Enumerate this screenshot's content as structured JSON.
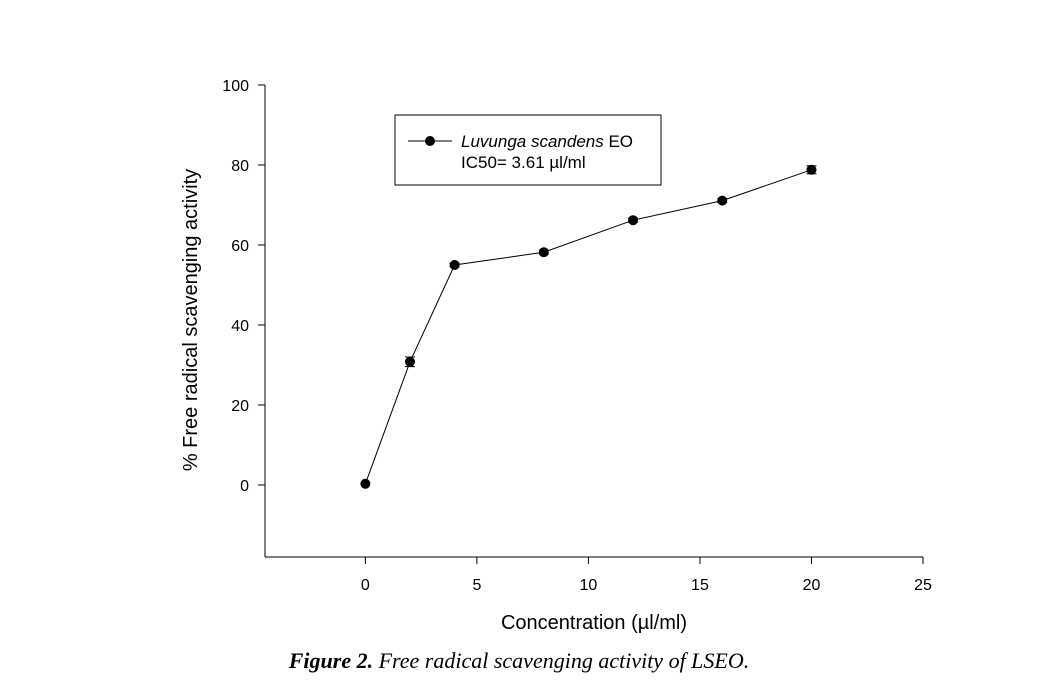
{
  "chart_data": {
    "type": "line",
    "title": "",
    "xlabel": "Concentration (µl/ml)",
    "ylabel": "% Free radical scavenging activity",
    "xlim": [
      -4.5,
      25
    ],
    "ylim": [
      -18,
      100
    ],
    "xticks": [
      0,
      5,
      10,
      15,
      20,
      25
    ],
    "yticks": [
      0,
      20,
      40,
      60,
      80,
      100
    ],
    "grid": false,
    "legend_position": "top-left",
    "series": [
      {
        "name_italic": "Luvunga scandens",
        "name_rest": " EO",
        "annotation": "IC50= 3.61 µl/ml",
        "x": [
          0,
          2,
          4,
          8,
          12,
          16,
          20
        ],
        "y": [
          0.3,
          30.8,
          55.0,
          58.2,
          66.2,
          71.1,
          78.8
        ],
        "error": [
          0,
          1.2,
          0.5,
          0.5,
          0.5,
          0.5,
          1.0
        ]
      }
    ]
  },
  "caption": {
    "label": "Figure 2.",
    "text": " Free radical scavenging activity of LSEO."
  }
}
